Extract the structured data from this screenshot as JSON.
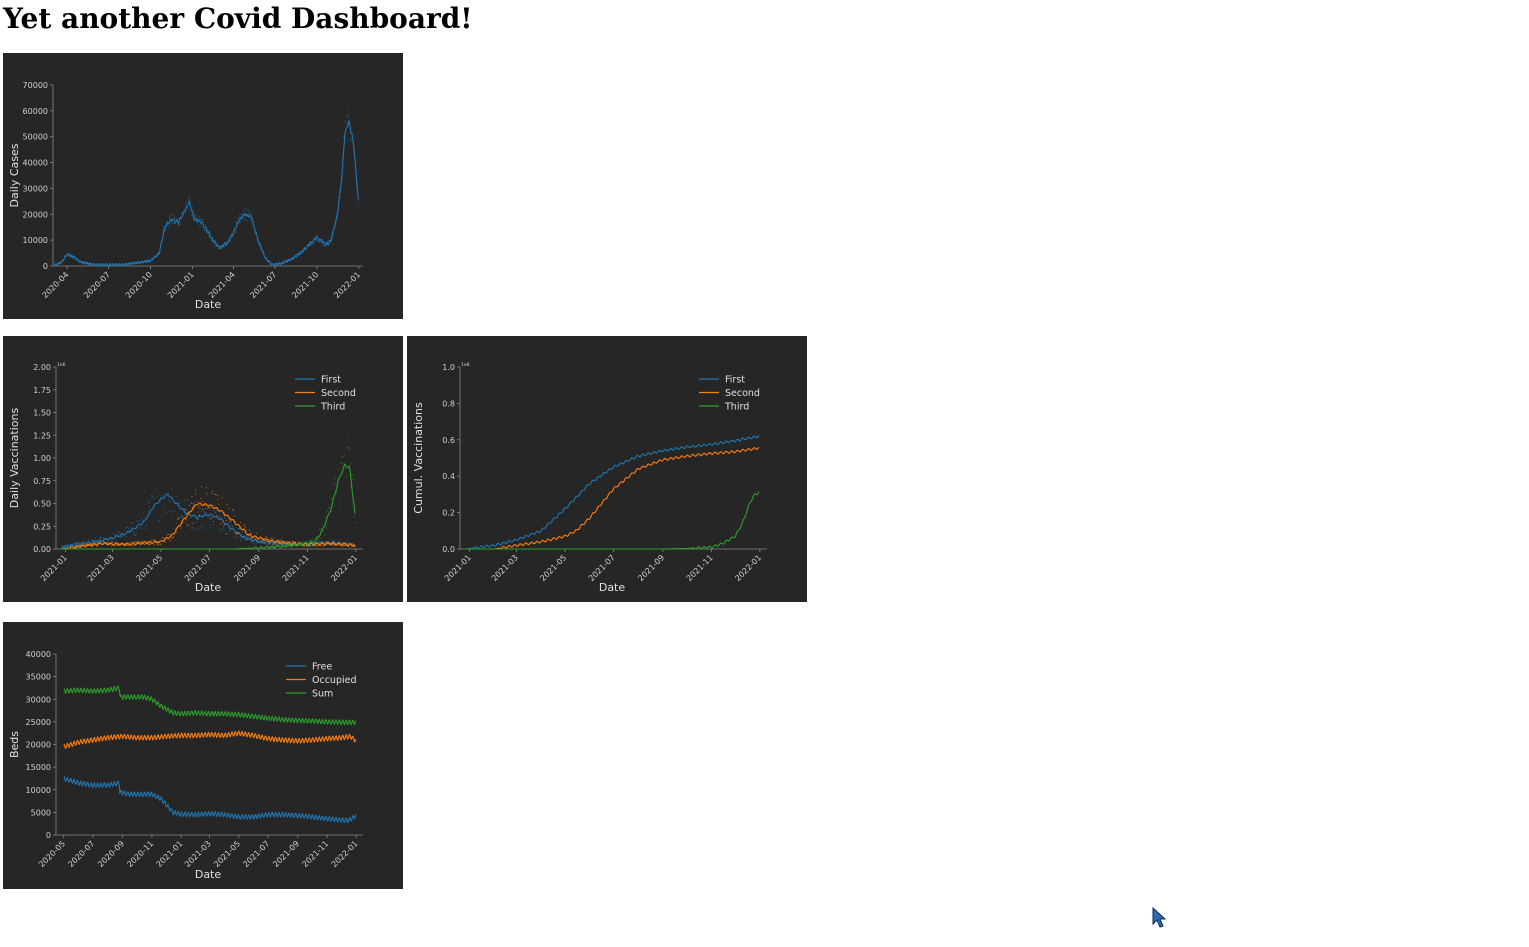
{
  "page": {
    "title": "Yet another Covid Dashboard!"
  },
  "colors": {
    "blue": "#1f77b4",
    "orange": "#ff7f0e",
    "green": "#2ca02c",
    "panel_bg": "#262626",
    "axis": "#888888"
  },
  "chart_data": [
    {
      "id": "daily-cases",
      "type": "line",
      "xlabel": "Date",
      "ylabel": "Daily Cases",
      "ylim": [
        0,
        70000
      ],
      "yticks": [
        0,
        10000,
        20000,
        30000,
        40000,
        50000,
        60000,
        70000
      ],
      "xlim": [
        "2020-03-01",
        "2022-01-10"
      ],
      "xticks": [
        "2020-04",
        "2020-07",
        "2020-10",
        "2021-01",
        "2021-04",
        "2021-07",
        "2021-10",
        "2022-01"
      ],
      "grid": false,
      "scatter_noise": true,
      "series": [
        {
          "color": "#1f77b4",
          "x": [
            "2020-03-01",
            "2020-03-20",
            "2020-04-01",
            "2020-04-15",
            "2020-05-01",
            "2020-06-01",
            "2020-08-01",
            "2020-10-01",
            "2020-10-20",
            "2020-11-01",
            "2020-11-15",
            "2020-12-01",
            "2020-12-20",
            "2020-12-25",
            "2021-01-05",
            "2021-01-20",
            "2021-02-15",
            "2021-03-01",
            "2021-03-20",
            "2021-04-15",
            "2021-04-25",
            "2021-05-10",
            "2021-05-25",
            "2021-06-10",
            "2021-06-25",
            "2021-07-15",
            "2021-08-10",
            "2021-09-01",
            "2021-10-01",
            "2021-10-15",
            "2021-10-25",
            "2021-11-01",
            "2021-11-15",
            "2021-11-25",
            "2021-12-01",
            "2021-12-10",
            "2021-12-20",
            "2021-12-31"
          ],
          "y": [
            0,
            1500,
            4500,
            3500,
            1500,
            500,
            500,
            2000,
            5000,
            15000,
            18000,
            17000,
            23000,
            25000,
            18000,
            17000,
            10000,
            7000,
            9000,
            18000,
            20000,
            19000,
            10000,
            3000,
            500,
            1000,
            3000,
            6000,
            11000,
            9000,
            8500,
            10000,
            20000,
            35000,
            51000,
            56000,
            48000,
            25000
          ]
        }
      ]
    },
    {
      "id": "daily-vaccinations",
      "type": "line",
      "xlabel": "Date",
      "ylabel": "Daily Vaccinations",
      "y_multiplier": "1e6",
      "ylim": [
        0,
        2.0
      ],
      "yticks": [
        0.0,
        0.25,
        0.5,
        0.75,
        1.0,
        1.25,
        1.5,
        1.75,
        2.0
      ],
      "ytick_labels": [
        "0.00",
        "0.25",
        "0.50",
        "0.75",
        "1.00",
        "1.25",
        "1.50",
        "1.75",
        "2.00"
      ],
      "xlim": [
        "2020-12-20",
        "2022-01-10"
      ],
      "xticks": [
        "2021-01",
        "2021-03",
        "2021-05",
        "2021-07",
        "2021-09",
        "2021-11",
        "2022-01"
      ],
      "legend_position": "top-right",
      "grid": false,
      "scatter_noise": true,
      "series": [
        {
          "name": "First",
          "color": "#1f77b4",
          "x": [
            "2020-12-27",
            "2021-01-15",
            "2021-02-01",
            "2021-03-01",
            "2021-03-20",
            "2021-04-10",
            "2021-04-20",
            "2021-05-01",
            "2021-05-10",
            "2021-05-20",
            "2021-06-01",
            "2021-06-15",
            "2021-07-01",
            "2021-07-15",
            "2021-08-01",
            "2021-08-15",
            "2021-09-01",
            "2021-10-01",
            "2021-11-01",
            "2021-12-01",
            "2021-12-31"
          ],
          "y": [
            0.02,
            0.05,
            0.07,
            0.12,
            0.18,
            0.3,
            0.45,
            0.55,
            0.6,
            0.5,
            0.4,
            0.35,
            0.38,
            0.33,
            0.2,
            0.12,
            0.08,
            0.06,
            0.05,
            0.07,
            0.04
          ]
        },
        {
          "name": "Second",
          "color": "#ff7f0e",
          "x": [
            "2020-12-27",
            "2021-01-20",
            "2021-02-15",
            "2021-03-15",
            "2021-04-15",
            "2021-05-01",
            "2021-05-15",
            "2021-06-01",
            "2021-06-15",
            "2021-07-01",
            "2021-07-15",
            "2021-08-01",
            "2021-08-20",
            "2021-09-10",
            "2021-10-01",
            "2021-11-01",
            "2021-12-01",
            "2021-12-31"
          ],
          "y": [
            0.0,
            0.03,
            0.06,
            0.05,
            0.07,
            0.08,
            0.15,
            0.35,
            0.5,
            0.48,
            0.42,
            0.3,
            0.15,
            0.1,
            0.07,
            0.05,
            0.06,
            0.04
          ]
        },
        {
          "name": "Third",
          "color": "#2ca02c",
          "x": [
            "2020-12-27",
            "2021-08-01",
            "2021-09-15",
            "2021-10-15",
            "2021-11-10",
            "2021-11-20",
            "2021-12-01",
            "2021-12-10",
            "2021-12-18",
            "2021-12-24",
            "2021-12-31"
          ],
          "y": [
            0.0,
            0.0,
            0.02,
            0.04,
            0.08,
            0.2,
            0.45,
            0.75,
            0.92,
            0.9,
            0.38
          ]
        }
      ]
    },
    {
      "id": "cumul-vaccinations",
      "type": "line",
      "xlabel": "Date",
      "ylabel": "Cumul. Vaccinations",
      "y_multiplier": "1e8",
      "ylim": [
        0,
        1.0
      ],
      "yticks": [
        0.0,
        0.2,
        0.4,
        0.6,
        0.8,
        1.0
      ],
      "ytick_labels": [
        "0.0",
        "0.2",
        "0.4",
        "0.6",
        "0.8",
        "1.0"
      ],
      "xlim": [
        "2020-12-20",
        "2022-01-10"
      ],
      "xticks": [
        "2021-01",
        "2021-03",
        "2021-05",
        "2021-07",
        "2021-09",
        "2021-11",
        "2022-01"
      ],
      "legend_position": "top-right",
      "grid": false,
      "scatter_noise": false,
      "series": [
        {
          "name": "First",
          "color": "#1f77b4",
          "x": [
            "2020-12-27",
            "2021-02-01",
            "2021-03-01",
            "2021-04-01",
            "2021-05-01",
            "2021-06-01",
            "2021-07-01",
            "2021-08-01",
            "2021-09-01",
            "2021-10-01",
            "2021-11-01",
            "2021-12-01",
            "2021-12-31"
          ],
          "y": [
            0.0,
            0.02,
            0.05,
            0.1,
            0.22,
            0.36,
            0.45,
            0.51,
            0.54,
            0.56,
            0.575,
            0.595,
            0.62
          ]
        },
        {
          "name": "Second",
          "color": "#ff7f0e",
          "x": [
            "2020-12-27",
            "2021-02-01",
            "2021-03-01",
            "2021-04-01",
            "2021-05-01",
            "2021-05-15",
            "2021-06-01",
            "2021-07-01",
            "2021-08-01",
            "2021-09-01",
            "2021-10-01",
            "2021-11-01",
            "2021-12-01",
            "2021-12-31"
          ],
          "y": [
            0.0,
            0.0,
            0.02,
            0.04,
            0.07,
            0.1,
            0.17,
            0.33,
            0.44,
            0.49,
            0.51,
            0.525,
            0.535,
            0.555
          ]
        },
        {
          "name": "Third",
          "color": "#2ca02c",
          "x": [
            "2020-12-27",
            "2021-09-01",
            "2021-10-01",
            "2021-11-01",
            "2021-11-15",
            "2021-12-01",
            "2021-12-10",
            "2021-12-20",
            "2021-12-26",
            "2021-12-31"
          ],
          "y": [
            0.0,
            0.0,
            0.003,
            0.01,
            0.03,
            0.07,
            0.14,
            0.26,
            0.3,
            0.31
          ]
        }
      ]
    },
    {
      "id": "beds",
      "type": "line",
      "xlabel": "Date",
      "ylabel": "Beds",
      "ylim": [
        0,
        40000
      ],
      "yticks": [
        0,
        5000,
        10000,
        15000,
        20000,
        25000,
        30000,
        35000,
        40000
      ],
      "xlim": [
        "2020-04-15",
        "2022-01-15"
      ],
      "xticks": [
        "2020-05",
        "2020-07",
        "2020-09",
        "2020-11",
        "2021-01",
        "2021-03",
        "2021-05",
        "2021-07",
        "2021-09",
        "2021-11",
        "2022-01"
      ],
      "legend_position": "top-right",
      "grid": false,
      "scatter_noise": false,
      "series": [
        {
          "name": "Free",
          "color": "#1f77b4",
          "x": [
            "2020-05-01",
            "2020-06-01",
            "2020-07-01",
            "2020-08-01",
            "2020-08-25",
            "2020-08-26",
            "2020-09-15",
            "2020-10-15",
            "2020-11-01",
            "2020-11-20",
            "2020-12-15",
            "2021-01-01",
            "2021-02-01",
            "2021-03-01",
            "2021-04-01",
            "2021-05-01",
            "2021-06-01",
            "2021-07-01",
            "2021-08-01",
            "2021-09-01",
            "2021-10-01",
            "2021-11-01",
            "2021-12-01",
            "2021-12-15",
            "2021-12-31"
          ],
          "y": [
            12500,
            11500,
            11000,
            11000,
            11500,
            9500,
            9000,
            9000,
            9000,
            8000,
            5000,
            4600,
            4500,
            4700,
            4500,
            4000,
            4000,
            4500,
            4500,
            4300,
            4000,
            3600,
            3300,
            3200,
            4200
          ]
        },
        {
          "name": "Occupied",
          "color": "#ff7f0e",
          "x": [
            "2020-05-01",
            "2020-06-01",
            "2020-07-01",
            "2020-08-01",
            "2020-09-01",
            "2020-10-01",
            "2020-11-01",
            "2020-12-01",
            "2021-01-01",
            "2021-02-01",
            "2021-03-01",
            "2021-04-01",
            "2021-05-01",
            "2021-06-01",
            "2021-07-01",
            "2021-08-01",
            "2021-09-01",
            "2021-10-01",
            "2021-11-01",
            "2021-12-01",
            "2021-12-20",
            "2021-12-31"
          ],
          "y": [
            19500,
            20500,
            21000,
            21500,
            21800,
            21500,
            21500,
            21800,
            22000,
            22000,
            22200,
            22000,
            22500,
            22000,
            21300,
            21000,
            20800,
            21000,
            21300,
            21500,
            21800,
            20800
          ]
        },
        {
          "name": "Sum",
          "color": "#2ca02c",
          "x": [
            "2020-05-01",
            "2020-06-01",
            "2020-07-01",
            "2020-08-01",
            "2020-08-25",
            "2020-08-27",
            "2020-09-15",
            "2020-10-15",
            "2020-11-01",
            "2020-11-20",
            "2020-12-15",
            "2021-01-01",
            "2021-02-01",
            "2021-03-01",
            "2021-04-01",
            "2021-05-01",
            "2021-06-01",
            "2021-07-01",
            "2021-08-01",
            "2021-09-01",
            "2021-10-01",
            "2021-11-01",
            "2021-12-01",
            "2021-12-31"
          ],
          "y": [
            31800,
            32000,
            31800,
            32000,
            32500,
            30500,
            30500,
            30500,
            30000,
            28500,
            27000,
            26800,
            27000,
            26800,
            26800,
            26600,
            26200,
            25800,
            25500,
            25300,
            25200,
            25000,
            24900,
            24900
          ]
        }
      ]
    }
  ]
}
